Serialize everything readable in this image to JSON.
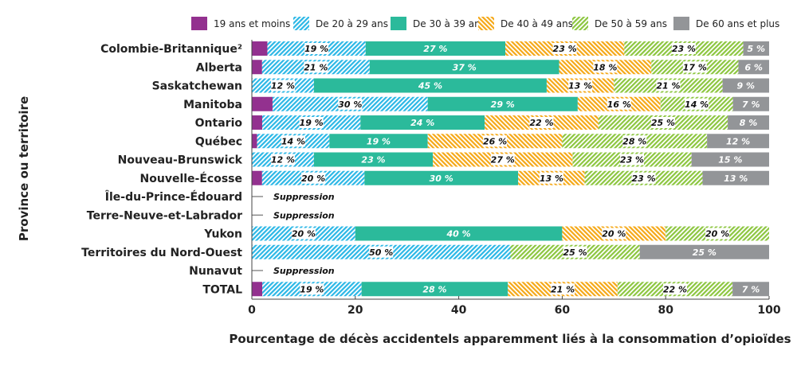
{
  "chart_data": {
    "type": "bar",
    "orientation": "horizontal",
    "stacked": true,
    "xlabel": "Pourcentage de décès accidentels apparemment liés à la consommation d’opioïdes",
    "ylabel": "Province ou territoire",
    "xlim": [
      0,
      100
    ],
    "xticks": [
      "0",
      "20",
      "40",
      "60",
      "80",
      "100"
    ],
    "legend_position": "top",
    "categories": [
      "Colombie-Britannique²",
      "Alberta",
      "Saskatchewan",
      "Manitoba",
      "Ontario",
      "Québec",
      "Nouveau-Brunswick",
      "Nouvelle-Écosse",
      "Île-du-Prince-Édouard",
      "Terre-Neuve-et-Labrador",
      "Yukon",
      "Territoires du Nord-Ouest",
      "Nunavut",
      "TOTAL"
    ],
    "suppression_label": "Suppression",
    "suppressed": [
      false,
      false,
      false,
      false,
      false,
      false,
      false,
      false,
      true,
      true,
      false,
      false,
      true,
      false
    ],
    "series": [
      {
        "name": "19 ans et moins",
        "color": "#93318f",
        "pattern": "solid",
        "values": [
          3,
          2,
          0,
          4,
          2,
          1,
          0,
          2,
          null,
          null,
          0,
          0,
          null,
          2
        ]
      },
      {
        "name": "De 20 à 29 ans",
        "color": "#2bb7e6",
        "pattern": "hatch",
        "values": [
          19,
          21,
          12,
          30,
          19,
          14,
          12,
          20,
          null,
          null,
          20,
          50,
          null,
          19
        ]
      },
      {
        "name": "De 30 à 39 ans",
        "color": "#2bba9b",
        "pattern": "solid",
        "values": [
          27,
          37,
          45,
          29,
          24,
          19,
          23,
          30,
          null,
          null,
          40,
          0,
          null,
          28
        ]
      },
      {
        "name": "De 40 à 49 ans",
        "color": "#f5a816",
        "pattern": "hatch",
        "values": [
          23,
          18,
          13,
          16,
          22,
          26,
          27,
          13,
          null,
          null,
          20,
          0,
          null,
          21
        ]
      },
      {
        "name": "De 50 à 59 ans",
        "color": "#8cc63f",
        "pattern": "hatch",
        "values": [
          23,
          17,
          21,
          14,
          25,
          28,
          23,
          23,
          null,
          null,
          20,
          25,
          null,
          22
        ]
      },
      {
        "name": "De 60 ans et plus",
        "color": "#939598",
        "pattern": "solid",
        "values": [
          5,
          6,
          9,
          7,
          8,
          12,
          15,
          13,
          null,
          null,
          0,
          25,
          null,
          7
        ]
      }
    ]
  }
}
